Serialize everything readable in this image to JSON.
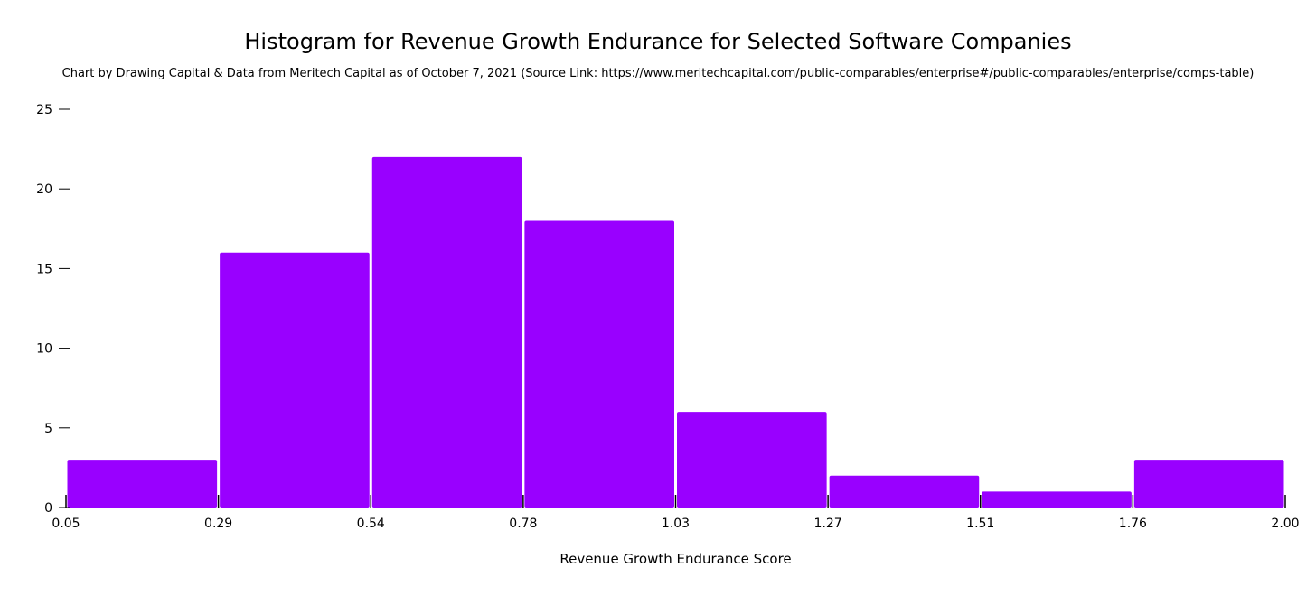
{
  "chart_data": {
    "type": "bar",
    "subtype": "histogram",
    "title": "Histogram for Revenue Growth Endurance for Selected Software Companies",
    "subtitle": "Chart by Drawing Capital & Data from Meritech Capital as of October 7, 2021 (Source Link: https://www.meritechcapital.com/public-comparables/enterprise#/public-comparables/enterprise/comps-table)",
    "xlabel": "Revenue Growth Endurance Score",
    "ylabel": "",
    "bin_edges": [
      0.05,
      0.29,
      0.54,
      0.78,
      1.03,
      1.27,
      1.51,
      1.76,
      2.0
    ],
    "x_tick_labels": [
      "0.05",
      "0.29",
      "0.54",
      "0.78",
      "1.03",
      "1.27",
      "1.51",
      "1.76",
      "2.00"
    ],
    "values": [
      3,
      16,
      22,
      18,
      6,
      2,
      1,
      3
    ],
    "ylim": [
      0,
      25
    ],
    "y_ticks": [
      0,
      5,
      10,
      15,
      20,
      25
    ],
    "bar_color": "#9900ff",
    "grid": false,
    "legend": "none"
  }
}
